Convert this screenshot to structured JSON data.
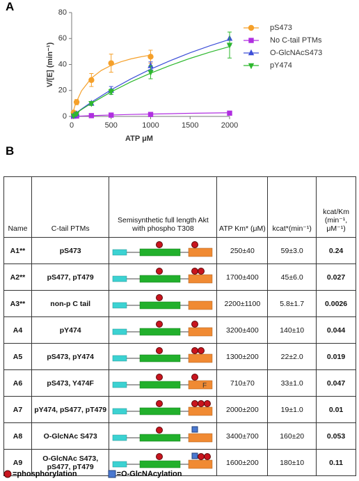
{
  "panel_labels": [
    "A",
    "B"
  ],
  "chart_data": {
    "type": "scatter",
    "xlabel": "ATP μM",
    "ylabel": "V/[E] (min⁻¹)",
    "xlim": [
      0,
      2000
    ],
    "xticks": [
      0,
      500,
      1000,
      1500,
      2000
    ],
    "ylim": [
      0,
      80
    ],
    "yticks": [
      0,
      20,
      40,
      60,
      80
    ],
    "grid": false,
    "legend": "upper right",
    "series": [
      {
        "name": "pS473",
        "color": "#f5a02a",
        "marker": "circle",
        "x": [
          25,
          62.5,
          250,
          500,
          1000
        ],
        "values": [
          3,
          11,
          28,
          41,
          46
        ],
        "errors": [
          1,
          2,
          5,
          7,
          5
        ],
        "fit": {
          "x": [
            0,
            50,
            125,
            250,
            375,
            500,
            625,
            750,
            875,
            1000
          ],
          "values": [
            0,
            9.8,
            19.7,
            29.5,
            35.4,
            39.3,
            42.1,
            44.3,
            45.9,
            47.2
          ]
        }
      },
      {
        "name": "No C-tail PTMs",
        "color": "#b02fe0",
        "marker": "square",
        "x": [
          25,
          62.5,
          250,
          500,
          1000,
          2000
        ],
        "values": [
          0.2,
          0.3,
          0.6,
          1,
          1.5,
          2.5
        ],
        "errors": [
          0.2,
          0.2,
          0.3,
          0.3,
          0.4,
          0.5
        ],
        "fit": {
          "x": [
            0,
            125,
            250,
            500,
            750,
            1000,
            1250,
            1500,
            1750,
            2000
          ],
          "values": [
            0,
            0.3,
            0.6,
            1.1,
            1.5,
            1.8,
            2.1,
            2.4,
            2.6,
            2.8
          ]
        }
      },
      {
        "name": "O-GlcNAcS473",
        "color": "#3d4fd8",
        "marker": "triangle-up",
        "x": [
          25,
          62.5,
          250,
          500,
          1000,
          2000
        ],
        "values": [
          0.5,
          2,
          10,
          20,
          39,
          60
        ],
        "errors": [
          0.5,
          0.8,
          1.5,
          3,
          3,
          5
        ],
        "fit": {
          "x": [
            0,
            125,
            250,
            500,
            750,
            1000,
            1250,
            1500,
            1750,
            2000
          ],
          "values": [
            0,
            5.7,
            11,
            20.5,
            28.9,
            36.4,
            43,
            49,
            54.4,
            59.3
          ]
        }
      },
      {
        "name": "pY474",
        "color": "#2eb82e",
        "marker": "triangle-down",
        "x": [
          25,
          62.5,
          250,
          500,
          1000,
          2000
        ],
        "values": [
          0.5,
          2,
          10,
          19,
          34,
          55
        ],
        "errors": [
          0.5,
          0.8,
          1.5,
          2,
          5,
          10
        ],
        "fit": {
          "x": [
            0,
            125,
            250,
            500,
            750,
            1000,
            1250,
            1500,
            1750,
            2000
          ],
          "values": [
            0,
            5.3,
            10.1,
            18.9,
            26.6,
            33.3,
            39.3,
            44.7,
            49.5,
            53.8
          ]
        }
      }
    ]
  },
  "table": {
    "header": [
      "Name",
      "C-tail PTMs",
      "Semisynthetic full length Akt with phospho T308",
      "ATP Km* (μM)",
      "kcat*(min⁻¹)",
      "kcat/Km (min⁻¹, μM⁻¹)"
    ],
    "rows": [
      {
        "name": "A1**",
        "ptms": "pS473",
        "km": "250±40",
        "kcat": "59±3.0",
        "ratio": "0.24"
      },
      {
        "name": "A2**",
        "ptms": "pS477, pT479",
        "km": "1700±400",
        "kcat": "45±6.0",
        "ratio": "0.027"
      },
      {
        "name": "A3**",
        "ptms": "non-p C tail",
        "km": "2200±1100",
        "kcat": "5.8±1.7",
        "ratio": "0.0026"
      },
      {
        "name": "A4",
        "ptms": "pY474",
        "km": "3200±400",
        "kcat": "140±10",
        "ratio": "0.044"
      },
      {
        "name": "A5",
        "ptms": "pS473, pY474",
        "km": "1300±200",
        "kcat": "22±2.0",
        "ratio": "0.019"
      },
      {
        "name": "A6",
        "ptms": "pS473, Y474F",
        "km": "710±70",
        "kcat": "33±1.0",
        "ratio": "0.047",
        "tail_label": "F"
      },
      {
        "name": "A7",
        "ptms": "pY474, pS477, pT479",
        "km": "2000±200",
        "kcat": "19±1.0",
        "ratio": "0.01"
      },
      {
        "name": "A8",
        "ptms": "O-GlcNAc S473",
        "km": "3400±700",
        "kcat": "160±20",
        "ratio": "0.053"
      },
      {
        "name": "A9",
        "ptms": "O-GlcNAc S473, pS477, pT479",
        "km": "1600±200",
        "kcat": "180±10",
        "ratio": "0.11"
      }
    ]
  },
  "legend": [
    "=phosphorylation",
    "=O-GlcNAcylation"
  ]
}
